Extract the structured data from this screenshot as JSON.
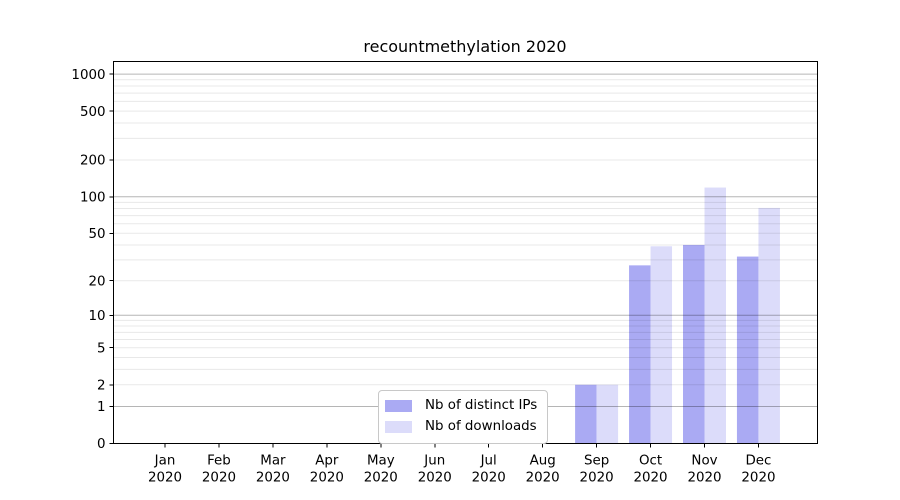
{
  "title": "recountmethylation 2020",
  "chart_data": {
    "type": "bar",
    "title": "recountmethylation 2020",
    "categories": [
      "Jan",
      "Feb",
      "Mar",
      "Apr",
      "May",
      "Jun",
      "Jul",
      "Aug",
      "Sep",
      "Oct",
      "Nov",
      "Dec"
    ],
    "x_sublabel": "2020",
    "series": [
      {
        "name": "Nb of distinct IPs",
        "color": "#aaaaf3",
        "values": [
          0,
          0,
          0,
          0,
          0,
          0,
          0,
          0,
          2,
          27,
          40,
          32
        ]
      },
      {
        "name": "Nb of downloads",
        "color": "#dcdcfa",
        "values": [
          0,
          0,
          0,
          0,
          0,
          0,
          0,
          0,
          2,
          39,
          119,
          81
        ]
      }
    ],
    "yscale": "log1p",
    "yticks": [
      0,
      1,
      2,
      5,
      10,
      20,
      50,
      100,
      200,
      500,
      1000
    ],
    "ylim": [
      0,
      1267
    ],
    "grid": {
      "which": "both",
      "major_decades": [
        1,
        10,
        100,
        1000
      ],
      "major_color": "rgba(0,0,0,0.29)",
      "minor_color": "rgba(0,0,0,0.09)"
    },
    "legend_position": "lower center-left",
    "axis_color": "#000000",
    "background_color": "#ffffff"
  }
}
